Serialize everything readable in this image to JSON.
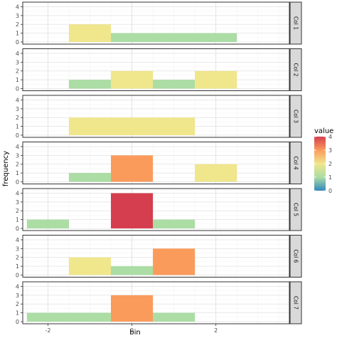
{
  "chart_data": {
    "type": "bar",
    "xlabel": "bin",
    "ylabel": "frequency",
    "xlim": [
      -2.6,
      3.75
    ],
    "ylim": [
      0,
      4.2
    ],
    "x_ticks": [
      -2,
      0,
      2
    ],
    "y_ticks": [
      0,
      1,
      2,
      3,
      4
    ],
    "bin_width": 1,
    "grid": true,
    "legend": {
      "title": "value",
      "position": "right",
      "ticks": [
        4,
        3,
        2,
        1,
        0
      ],
      "range": [
        0,
        4
      ]
    },
    "panels": [
      {
        "name": "Col 1",
        "bins": [
          {
            "x": -1,
            "value": 2
          },
          {
            "x": 0,
            "value": 1
          },
          {
            "x": 1,
            "value": 1
          },
          {
            "x": 2,
            "value": 1
          }
        ]
      },
      {
        "name": "Col 2",
        "bins": [
          {
            "x": -1,
            "value": 1
          },
          {
            "x": 0,
            "value": 2
          },
          {
            "x": 1,
            "value": 1
          },
          {
            "x": 2,
            "value": 2
          }
        ]
      },
      {
        "name": "Col 3",
        "bins": [
          {
            "x": -1,
            "value": 2
          },
          {
            "x": 0,
            "value": 2
          },
          {
            "x": 1,
            "value": 2
          }
        ]
      },
      {
        "name": "Col 4",
        "bins": [
          {
            "x": -1,
            "value": 1
          },
          {
            "x": 0,
            "value": 3
          },
          {
            "x": 2,
            "value": 2
          }
        ]
      },
      {
        "name": "Col 5",
        "bins": [
          {
            "x": -2,
            "value": 1
          },
          {
            "x": 0,
            "value": 4
          },
          {
            "x": 1,
            "value": 1
          }
        ]
      },
      {
        "name": "Col 6",
        "bins": [
          {
            "x": -1,
            "value": 2
          },
          {
            "x": 0,
            "value": 1
          },
          {
            "x": 1,
            "value": 3
          }
        ]
      },
      {
        "name": "Col 7",
        "bins": [
          {
            "x": -2,
            "value": 1
          },
          {
            "x": -1,
            "value": 1
          },
          {
            "x": 0,
            "value": 3
          },
          {
            "x": 1,
            "value": 1
          }
        ]
      }
    ],
    "value_colors": {
      "0": "#3288bd",
      "1": "#abdda4",
      "2": "#f0e68c",
      "3": "#fa9b5c",
      "4": "#d53e4f"
    }
  }
}
